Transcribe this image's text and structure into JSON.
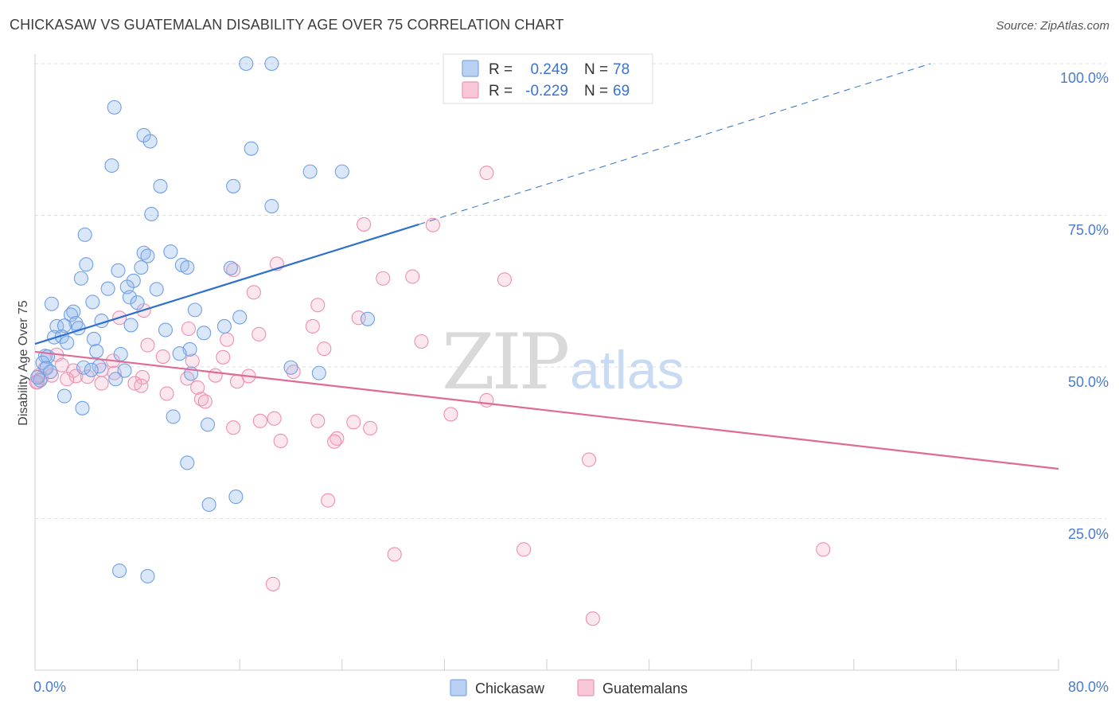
{
  "title": "CHICKASAW VS GUATEMALAN DISABILITY AGE OVER 75 CORRELATION CHART",
  "source": "Source: ZipAtlas.com",
  "watermark": {
    "zip": "ZIP",
    "atlas": "atlas"
  },
  "colors": {
    "chickasaw": "#6fa0e6",
    "chickasaw_fill": "rgba(150,185,235,0.35)",
    "chickasaw_line": "#2f6fce",
    "guatemalan": "#ee8fb0",
    "guatemalan_fill": "rgba(245,175,200,0.30)",
    "guatemalan_line": "#e06a96",
    "grid": "#dddddd",
    "tick_label": "#4a7bd0"
  },
  "legend": {
    "r_label": "R =",
    "n_label": "N =",
    "rows": [
      {
        "r": "0.249",
        "n": "78"
      },
      {
        "r": "-0.229",
        "n": "69"
      }
    ]
  },
  "chart_data": {
    "type": "scatter",
    "xlabel": "",
    "ylabel": "Disability Age Over 75",
    "xlim": [
      0,
      80
    ],
    "ylim": [
      0,
      100
    ],
    "x_tick_labels": [
      "0.0%",
      "80.0%"
    ],
    "y_tick_labels": [
      "25.0%",
      "50.0%",
      "75.0%",
      "100.0%"
    ],
    "y_ticks": [
      25,
      50,
      75,
      100
    ],
    "grid": "horizontal dashed",
    "legend_position": "top-center",
    "series": [
      {
        "name": "Chickasaw",
        "trend": {
          "x": [
            0,
            30
          ],
          "y": [
            53.8,
            73.5
          ],
          "dashed_extension": {
            "x": [
              30,
              70
            ],
            "y": [
              73.5,
              100
            ]
          }
        },
        "points": [
          [
            16.5,
            100
          ],
          [
            18.5,
            100
          ],
          [
            6.2,
            92.8
          ],
          [
            8.5,
            88.2
          ],
          [
            9.0,
            87.2
          ],
          [
            16.9,
            86.0
          ],
          [
            6.0,
            83.2
          ],
          [
            21.5,
            82.2
          ],
          [
            24.0,
            82.2
          ],
          [
            9.8,
            79.8
          ],
          [
            15.5,
            79.8
          ],
          [
            18.5,
            76.5
          ],
          [
            9.1,
            75.2
          ],
          [
            3.9,
            71.8
          ],
          [
            8.5,
            68.8
          ],
          [
            10.6,
            69.0
          ],
          [
            8.8,
            68.3
          ],
          [
            4.0,
            66.9
          ],
          [
            11.5,
            66.8
          ],
          [
            11.9,
            66.4
          ],
          [
            6.5,
            65.9
          ],
          [
            8.3,
            66.4
          ],
          [
            15.3,
            66.3
          ],
          [
            3.6,
            64.6
          ],
          [
            7.7,
            64.2
          ],
          [
            7.2,
            63.2
          ],
          [
            5.7,
            62.9
          ],
          [
            9.5,
            62.8
          ],
          [
            7.4,
            61.5
          ],
          [
            1.3,
            60.4
          ],
          [
            4.5,
            60.7
          ],
          [
            8.0,
            60.6
          ],
          [
            3.0,
            59.1
          ],
          [
            2.8,
            58.6
          ],
          [
            12.5,
            59.4
          ],
          [
            16.0,
            58.2
          ],
          [
            26.0,
            57.9
          ],
          [
            5.2,
            57.6
          ],
          [
            3.2,
            57.2
          ],
          [
            1.7,
            56.7
          ],
          [
            2.3,
            56.8
          ],
          [
            3.4,
            56.4
          ],
          [
            7.5,
            56.9
          ],
          [
            10.2,
            56.1
          ],
          [
            14.8,
            56.7
          ],
          [
            13.2,
            55.6
          ],
          [
            1.5,
            54.9
          ],
          [
            2.1,
            55.0
          ],
          [
            4.6,
            54.6
          ],
          [
            2.5,
            54.0
          ],
          [
            4.8,
            52.6
          ],
          [
            12.1,
            52.9
          ],
          [
            11.3,
            52.2
          ],
          [
            6.7,
            52.1
          ],
          [
            0.8,
            51.8
          ],
          [
            1.0,
            51.7
          ],
          [
            0.6,
            50.7
          ],
          [
            3.8,
            49.9
          ],
          [
            5.0,
            50.1
          ],
          [
            20.0,
            49.9
          ],
          [
            0.9,
            49.8
          ],
          [
            4.4,
            49.5
          ],
          [
            1.2,
            49.2
          ],
          [
            7.0,
            49.4
          ],
          [
            22.2,
            49.0
          ],
          [
            12.2,
            48.9
          ],
          [
            6.3,
            48.0
          ],
          [
            0.4,
            47.8
          ],
          [
            2.3,
            45.2
          ],
          [
            3.7,
            43.2
          ],
          [
            10.8,
            41.8
          ],
          [
            13.5,
            40.5
          ],
          [
            11.9,
            34.2
          ],
          [
            15.7,
            28.6
          ],
          [
            13.6,
            27.3
          ],
          [
            6.6,
            16.4
          ],
          [
            8.8,
            15.5
          ],
          [
            0.2,
            48.3
          ]
        ]
      },
      {
        "name": "Guatemalans",
        "trend": {
          "x": [
            0,
            80
          ],
          "y": [
            52.5,
            33.2
          ]
        },
        "points": [
          [
            35.3,
            82.0
          ],
          [
            25.7,
            73.5
          ],
          [
            31.1,
            73.4
          ],
          [
            18.9,
            67.0
          ],
          [
            15.5,
            66.0
          ],
          [
            27.2,
            64.6
          ],
          [
            29.5,
            64.9
          ],
          [
            36.7,
            64.4
          ],
          [
            17.1,
            62.3
          ],
          [
            22.1,
            60.2
          ],
          [
            8.5,
            59.3
          ],
          [
            6.6,
            58.1
          ],
          [
            25.3,
            58.1
          ],
          [
            21.7,
            56.7
          ],
          [
            12.0,
            56.3
          ],
          [
            17.5,
            55.4
          ],
          [
            15.0,
            54.5
          ],
          [
            30.2,
            54.2
          ],
          [
            8.8,
            53.6
          ],
          [
            22.6,
            53.0
          ],
          [
            1.7,
            52.0
          ],
          [
            10.0,
            51.7
          ],
          [
            14.7,
            51.6
          ],
          [
            12.3,
            51.0
          ],
          [
            6.1,
            51.0
          ],
          [
            2.1,
            50.3
          ],
          [
            0.8,
            49.8
          ],
          [
            3.0,
            49.4
          ],
          [
            5.2,
            49.5
          ],
          [
            6.2,
            49.0
          ],
          [
            20.2,
            49.2
          ],
          [
            1.3,
            48.6
          ],
          [
            0.3,
            48.6
          ],
          [
            3.2,
            48.5
          ],
          [
            4.1,
            48.4
          ],
          [
            2.5,
            48.0
          ],
          [
            8.4,
            48.3
          ],
          [
            11.9,
            48.1
          ],
          [
            14.1,
            48.6
          ],
          [
            16.7,
            48.5
          ],
          [
            0.5,
            48.2
          ],
          [
            15.8,
            47.6
          ],
          [
            0.2,
            47.5
          ],
          [
            5.2,
            47.3
          ],
          [
            7.8,
            47.3
          ],
          [
            8.3,
            46.9
          ],
          [
            12.7,
            46.6
          ],
          [
            10.3,
            45.6
          ],
          [
            13.0,
            44.7
          ],
          [
            13.3,
            44.3
          ],
          [
            35.3,
            44.5
          ],
          [
            32.5,
            42.2
          ],
          [
            18.7,
            41.5
          ],
          [
            22.1,
            41.1
          ],
          [
            17.6,
            41.1
          ],
          [
            24.9,
            40.9
          ],
          [
            15.5,
            40.0
          ],
          [
            26.2,
            39.9
          ],
          [
            23.6,
            38.2
          ],
          [
            23.4,
            37.7
          ],
          [
            19.2,
            37.8
          ],
          [
            43.3,
            34.7
          ],
          [
            22.9,
            28.0
          ],
          [
            28.1,
            19.1
          ],
          [
            38.2,
            19.9
          ],
          [
            61.6,
            19.9
          ],
          [
            18.6,
            14.2
          ],
          [
            43.6,
            8.5
          ],
          [
            0.1,
            47.5
          ]
        ]
      }
    ]
  },
  "bottom_legend": [
    {
      "label": "Chickasaw"
    },
    {
      "label": "Guatemalans"
    }
  ]
}
